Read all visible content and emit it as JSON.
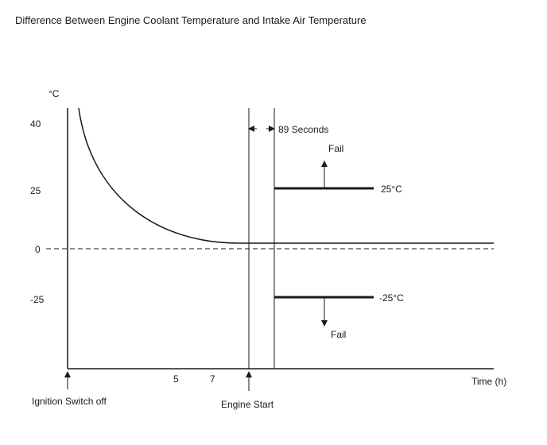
{
  "title": "Difference Between Engine Coolant Temperature and Intake Air Temperature",
  "axes": {
    "y_unit": "°C",
    "y_ticks": [
      "40",
      "25",
      "0",
      "-25"
    ],
    "x_label": "Time (h)",
    "x_ticks": [
      "5",
      "7"
    ]
  },
  "events": {
    "ignition_off": "Ignition Switch off",
    "engine_start": "Engine Start",
    "interval": "89 Seconds"
  },
  "thresholds": {
    "upper": {
      "label": "25°C",
      "direction_label": "Fail"
    },
    "lower": {
      "label": "-25°C",
      "direction_label": "Fail"
    }
  },
  "colors": {
    "line": "#1a1a1a",
    "background": "#ffffff"
  }
}
